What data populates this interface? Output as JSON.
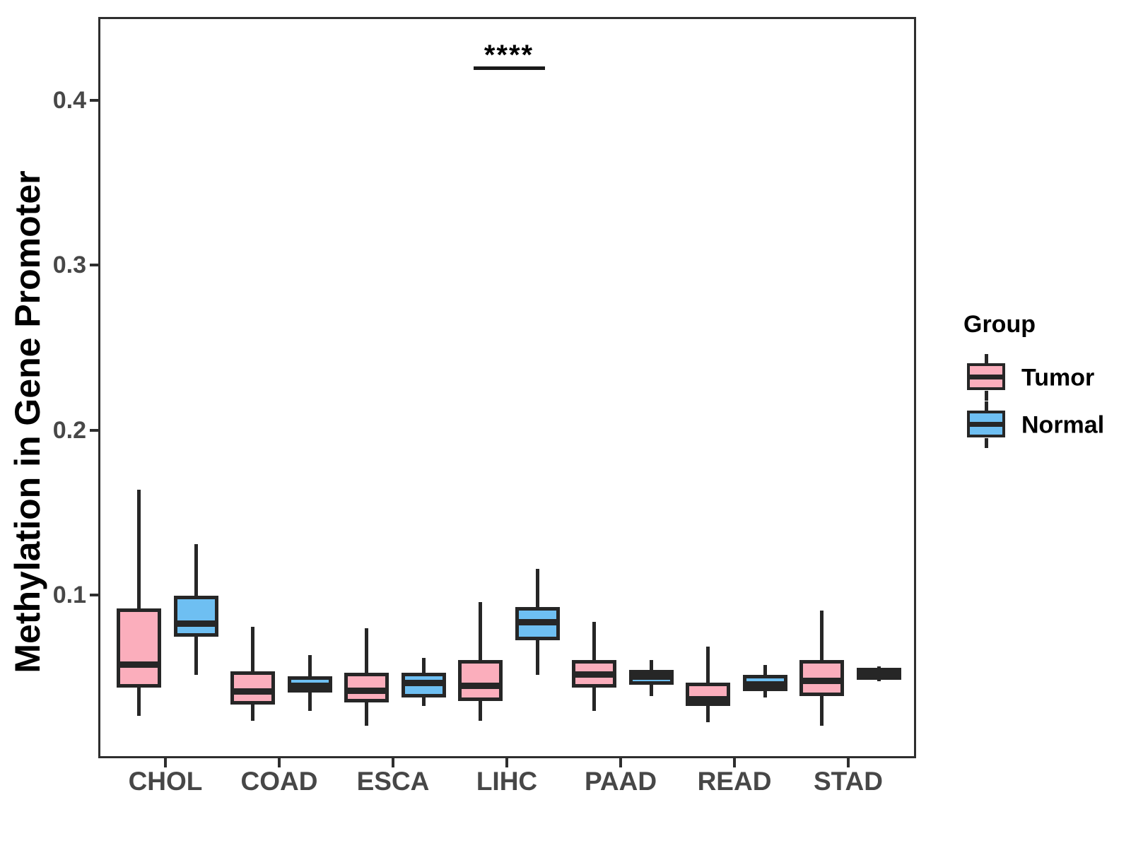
{
  "chart_data": {
    "type": "boxplot",
    "title": "",
    "ylabel": "Methylation in Gene Promoter",
    "xlabel": "",
    "ylim": [
      0,
      0.45
    ],
    "yticks": [
      0.1,
      0.2,
      0.3,
      0.4
    ],
    "grid": false,
    "legend_position": "right",
    "categories": [
      "CHOL",
      "COAD",
      "ESCA",
      "LIHC",
      "PAAD",
      "READ",
      "STAD"
    ],
    "groups": [
      "Tumor",
      "Normal"
    ],
    "group_colors": {
      "Tumor": "#FBAEBC",
      "Normal": "#6EBFF2"
    },
    "series": [
      {
        "name": "Tumor",
        "boxes": [
          {
            "category": "CHOL",
            "min": 0.028,
            "q1": 0.045,
            "median": 0.059,
            "q3": 0.093,
            "max": 0.165
          },
          {
            "category": "COAD",
            "min": 0.025,
            "q1": 0.035,
            "median": 0.043,
            "q3": 0.055,
            "max": 0.082
          },
          {
            "category": "ESCA",
            "min": 0.022,
            "q1": 0.036,
            "median": 0.043,
            "q3": 0.054,
            "max": 0.081
          },
          {
            "category": "LIHC",
            "min": 0.025,
            "q1": 0.037,
            "median": 0.046,
            "q3": 0.062,
            "max": 0.097
          },
          {
            "category": "PAAD",
            "min": 0.031,
            "q1": 0.045,
            "median": 0.053,
            "q3": 0.062,
            "max": 0.085
          },
          {
            "category": "READ",
            "min": 0.024,
            "q1": 0.034,
            "median": 0.038,
            "q3": 0.048,
            "max": 0.07
          },
          {
            "category": "STAD",
            "min": 0.022,
            "q1": 0.04,
            "median": 0.049,
            "q3": 0.062,
            "max": 0.092
          }
        ]
      },
      {
        "name": "Normal",
        "boxes": [
          {
            "category": "CHOL",
            "min": 0.053,
            "q1": 0.076,
            "median": 0.084,
            "q3": 0.101,
            "max": 0.132
          },
          {
            "category": "COAD",
            "min": 0.031,
            "q1": 0.042,
            "median": 0.046,
            "q3": 0.052,
            "max": 0.065
          },
          {
            "category": "ESCA",
            "min": 0.034,
            "q1": 0.039,
            "median": 0.048,
            "q3": 0.054,
            "max": 0.063
          },
          {
            "category": "LIHC",
            "min": 0.053,
            "q1": 0.074,
            "median": 0.085,
            "q3": 0.094,
            "max": 0.117
          },
          {
            "category": "PAAD",
            "min": 0.04,
            "q1": 0.047,
            "median": 0.054,
            "q3": 0.056,
            "max": 0.062
          },
          {
            "category": "READ",
            "min": 0.039,
            "q1": 0.043,
            "median": 0.046,
            "q3": 0.053,
            "max": 0.059
          },
          {
            "category": "STAD",
            "min": 0.049,
            "q1": 0.05,
            "median": 0.054,
            "q3": 0.057,
            "max": 0.058
          }
        ]
      }
    ],
    "annotation": {
      "label": "****",
      "category": "LIHC",
      "y_value": 0.422
    }
  },
  "legend": {
    "title": "Group",
    "items": [
      {
        "label": "Tumor",
        "color": "#FBAEBC"
      },
      {
        "label": "Normal",
        "color": "#6EBFF2"
      }
    ]
  },
  "colors": {
    "box_border": "#262626",
    "panel_border": "#2e2e2e",
    "tick_label": "#474747",
    "axis_title": "#000000",
    "background": "#ffffff"
  }
}
